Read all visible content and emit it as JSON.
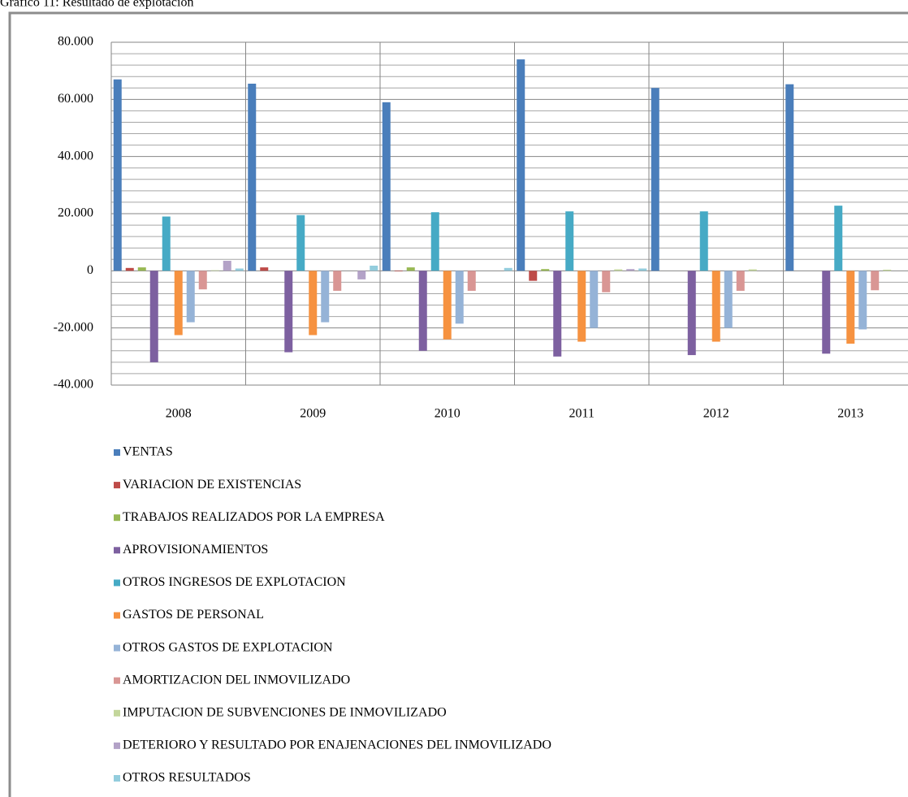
{
  "chart_data": {
    "type": "bar",
    "title": "Gráfico 11: Resultado de explotación",
    "categories": [
      "2008",
      "2009",
      "2010",
      "2011",
      "2012",
      "2013"
    ],
    "series": [
      {
        "name": "VENTAS",
        "color": "#4a7ebb",
        "values": [
          67000,
          65500,
          59000,
          74000,
          64000,
          65300
        ]
      },
      {
        "name": "VARIACION DE EXISTENCIAS",
        "color": "#be4b48",
        "values": [
          1000,
          1200,
          -200,
          -3500,
          0,
          0
        ]
      },
      {
        "name": "TRABAJOS REALIZADOS POR LA EMPRESA",
        "color": "#98b954",
        "values": [
          1200,
          0,
          1200,
          600,
          0,
          0
        ]
      },
      {
        "name": "APROVISIONAMIENTOS",
        "color": "#7d60a0",
        "values": [
          -32000,
          -28500,
          -28000,
          -30000,
          -29500,
          -29000
        ]
      },
      {
        "name": "OTROS INGRESOS DE EXPLOTACION",
        "color": "#46aac5",
        "values": [
          19000,
          19500,
          20500,
          20800,
          20800,
          22800
        ]
      },
      {
        "name": "GASTOS DE PERSONAL",
        "color": "#f69240",
        "values": [
          -22500,
          -22500,
          -24000,
          -24800,
          -24800,
          -25500
        ]
      },
      {
        "name": "OTROS GASTOS DE EXPLOTACION",
        "color": "#95b3d7",
        "values": [
          -18000,
          -18000,
          -18500,
          -20000,
          -20000,
          -20500
        ]
      },
      {
        "name": "AMORTIZACION DEL INMOVILIZADO",
        "color": "#d99694",
        "values": [
          -6500,
          -7000,
          -7000,
          -7500,
          -7000,
          -6800
        ]
      },
      {
        "name": "IMPUTACION DE SUBVENCIONES DE INMOVILIZADO",
        "color": "#c3d69b",
        "values": [
          200,
          0,
          0,
          500,
          500,
          400
        ]
      },
      {
        "name": "DETERIORO Y RESULTADO POR ENAJENACIONES DEL INMOVILIZADO",
        "color": "#b3a2c7",
        "values": [
          3500,
          -3000,
          0,
          600,
          0,
          0
        ]
      },
      {
        "name": "OTROS RESULTADOS",
        "color": "#93cddd",
        "values": [
          800,
          1800,
          1000,
          800,
          0,
          0
        ]
      }
    ],
    "ylim": [
      -40000,
      80000
    ],
    "yticks": [
      {
        "value": -40000,
        "label": "-40.000"
      },
      {
        "value": -20000,
        "label": "-20.000"
      },
      0,
      {
        "value": 20000,
        "label": "20.000"
      },
      {
        "value": 40000,
        "label": "40.000"
      },
      {
        "value": 60000,
        "label": "60.000"
      },
      {
        "value": 80000,
        "label": "80.000"
      }
    ],
    "minor_yticks": [
      -36000,
      -32000,
      -28000,
      -24000,
      -16000,
      -12000,
      -8000,
      -4000,
      4000,
      8000,
      12000,
      16000,
      24000,
      28000,
      32000,
      36000,
      44000,
      48000,
      52000,
      56000,
      64000,
      68000,
      72000,
      76000
    ],
    "grid": true,
    "legend": "bottom"
  }
}
